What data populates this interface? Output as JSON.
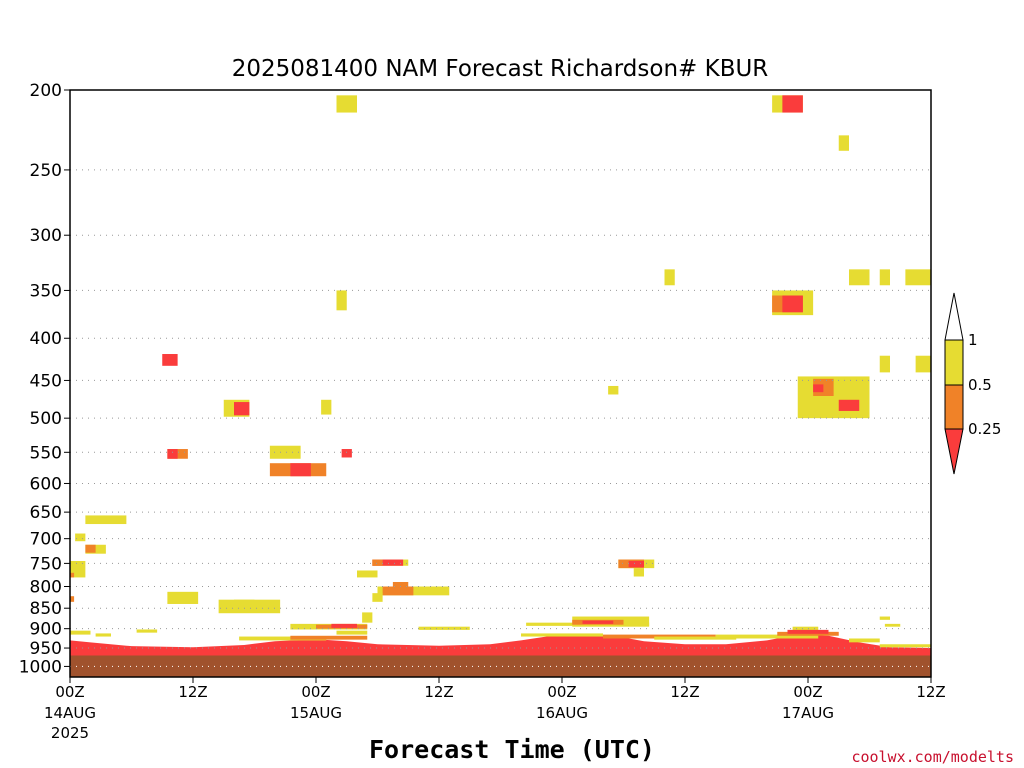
{
  "chart_data": {
    "type": "heatmap",
    "title": "2025081400 NAM Forecast Richardson# KBUR",
    "xlabel": "Forecast Time (UTC)",
    "ylabel": "",
    "y_ticks": [
      200,
      250,
      300,
      350,
      400,
      450,
      500,
      550,
      600,
      650,
      700,
      750,
      800,
      850,
      900,
      950,
      1000
    ],
    "y_scale": "log",
    "y_range_hpa": [
      200,
      1030
    ],
    "x_range_hours": [
      0,
      84
    ],
    "x_ticks": [
      {
        "hour": 0,
        "label": "00Z",
        "date": "14AUG",
        "year": "2025"
      },
      {
        "hour": 12,
        "label": "12Z",
        "date": "",
        "year": ""
      },
      {
        "hour": 24,
        "label": "00Z",
        "date": "15AUG",
        "year": ""
      },
      {
        "hour": 36,
        "label": "12Z",
        "date": "",
        "year": ""
      },
      {
        "hour": 48,
        "label": "00Z",
        "date": "16AUG",
        "year": ""
      },
      {
        "hour": 60,
        "label": "12Z",
        "date": "",
        "year": ""
      },
      {
        "hour": 72,
        "label": "00Z",
        "date": "17AUG",
        "year": ""
      },
      {
        "hour": 84,
        "label": "12Z",
        "date": "",
        "year": ""
      }
    ],
    "grid": "dotted horizontal lines at pressure ticks",
    "legend": {
      "placement": "right",
      "levels": [
        "1",
        "0.5",
        "0.25"
      ],
      "bins": [
        {
          "range": ">1",
          "color": "#ffffff"
        },
        {
          "range": "0.5-1",
          "color": "#e6dc32"
        },
        {
          "range": "0.25-0.5",
          "color": "#f08228"
        },
        {
          "range": "<0.25",
          "color": "#fa3c3c"
        }
      ]
    },
    "ground": {
      "color": "#a0522d",
      "from_hpa": 970
    },
    "patches": [
      {
        "h0": 26,
        "h1": 28,
        "p0": 203,
        "p1": 213,
        "c": "y"
      },
      {
        "h0": 68.5,
        "h1": 71.5,
        "p0": 203,
        "p1": 213,
        "c": "y"
      },
      {
        "h0": 69.5,
        "h1": 71.5,
        "p0": 203,
        "p1": 213,
        "c": "r"
      },
      {
        "h0": 75,
        "h1": 76,
        "p0": 227,
        "p1": 237,
        "c": "y"
      },
      {
        "h0": 58,
        "h1": 59,
        "p0": 330,
        "p1": 345,
        "c": "y"
      },
      {
        "h0": 76,
        "h1": 78,
        "p0": 330,
        "p1": 345,
        "c": "y"
      },
      {
        "h0": 79,
        "h1": 80,
        "p0": 330,
        "p1": 345,
        "c": "y"
      },
      {
        "h0": 81.5,
        "h1": 84,
        "p0": 330,
        "p1": 345,
        "c": "y"
      },
      {
        "h0": 26,
        "h1": 27,
        "p0": 350,
        "p1": 370,
        "c": "y"
      },
      {
        "h0": 68.5,
        "h1": 72.5,
        "p0": 350,
        "p1": 375,
        "c": "y"
      },
      {
        "h0": 68.5,
        "h1": 71.5,
        "p0": 355,
        "p1": 372,
        "c": "o"
      },
      {
        "h0": 69.5,
        "h1": 71.5,
        "p0": 355,
        "p1": 372,
        "c": "r"
      },
      {
        "h0": 9,
        "h1": 10.5,
        "p0": 418,
        "p1": 432,
        "c": "r"
      },
      {
        "h0": 79,
        "h1": 80,
        "p0": 420,
        "p1": 440,
        "c": "y"
      },
      {
        "h0": 82.5,
        "h1": 84,
        "p0": 420,
        "p1": 440,
        "c": "y"
      },
      {
        "h0": 52.5,
        "h1": 53.5,
        "p0": 457,
        "p1": 468,
        "c": "y"
      },
      {
        "h0": 71,
        "h1": 78,
        "p0": 445,
        "p1": 470,
        "c": "y"
      },
      {
        "h0": 71,
        "h1": 78,
        "p0": 470,
        "p1": 500,
        "c": "y"
      },
      {
        "h0": 72.5,
        "h1": 74.5,
        "p0": 448,
        "p1": 470,
        "c": "o"
      },
      {
        "h0": 72.5,
        "h1": 73.5,
        "p0": 455,
        "p1": 465,
        "c": "r"
      },
      {
        "h0": 75,
        "h1": 77,
        "p0": 475,
        "p1": 490,
        "c": "r"
      },
      {
        "h0": 15,
        "h1": 17.5,
        "p0": 475,
        "p1": 498,
        "c": "y"
      },
      {
        "h0": 16,
        "h1": 17.5,
        "p0": 478,
        "p1": 496,
        "c": "r"
      },
      {
        "h0": 24.5,
        "h1": 25.5,
        "p0": 475,
        "p1": 495,
        "c": "y"
      },
      {
        "h0": 9.5,
        "h1": 11.5,
        "p0": 545,
        "p1": 560,
        "c": "o"
      },
      {
        "h0": 9.5,
        "h1": 10.5,
        "p0": 545,
        "p1": 560,
        "c": "r"
      },
      {
        "h0": 26.5,
        "h1": 27.5,
        "p0": 545,
        "p1": 558,
        "c": "r"
      },
      {
        "h0": 19.5,
        "h1": 22.5,
        "p0": 540,
        "p1": 560,
        "c": "y"
      },
      {
        "h0": 19.5,
        "h1": 25,
        "p0": 567,
        "p1": 588,
        "c": "o"
      },
      {
        "h0": 21.5,
        "h1": 23.5,
        "p0": 567,
        "p1": 588,
        "c": "r"
      },
      {
        "h0": 1.5,
        "h1": 5.5,
        "p0": 656,
        "p1": 672,
        "c": "y"
      },
      {
        "h0": 0.5,
        "h1": 1.5,
        "p0": 690,
        "p1": 705,
        "c": "y"
      },
      {
        "h0": 1.5,
        "h1": 3.5,
        "p0": 712,
        "p1": 730,
        "c": "y"
      },
      {
        "h0": 1.5,
        "h1": 2.5,
        "p0": 712,
        "p1": 728,
        "c": "o"
      },
      {
        "h0": 0,
        "h1": 1.5,
        "p0": 745,
        "p1": 780,
        "c": "y"
      },
      {
        "h0": 0,
        "h1": 0.4,
        "p0": 770,
        "p1": 780,
        "c": "o"
      },
      {
        "h0": 0,
        "h1": 0.4,
        "p0": 822,
        "p1": 835,
        "c": "o"
      },
      {
        "h0": 29.5,
        "h1": 33,
        "p0": 742,
        "p1": 755,
        "c": "y"
      },
      {
        "h0": 29.5,
        "h1": 32.5,
        "p0": 742,
        "p1": 755,
        "c": "r"
      },
      {
        "h0": 29.5,
        "h1": 30.5,
        "p0": 742,
        "p1": 755,
        "c": "o"
      },
      {
        "h0": 28,
        "h1": 30,
        "p0": 765,
        "p1": 780,
        "c": "y"
      },
      {
        "h0": 53.5,
        "h1": 57,
        "p0": 742,
        "p1": 760,
        "c": "y"
      },
      {
        "h0": 53.5,
        "h1": 56,
        "p0": 742,
        "p1": 760,
        "c": "o"
      },
      {
        "h0": 54.5,
        "h1": 56,
        "p0": 745,
        "p1": 758,
        "c": "r"
      },
      {
        "h0": 55,
        "h1": 56,
        "p0": 760,
        "p1": 778,
        "c": "y"
      },
      {
        "h0": 30,
        "h1": 37,
        "p0": 800,
        "p1": 820,
        "c": "y"
      },
      {
        "h0": 30.5,
        "h1": 33.5,
        "p0": 800,
        "p1": 820,
        "c": "o"
      },
      {
        "h0": 31.5,
        "h1": 33,
        "p0": 790,
        "p1": 805,
        "c": "o"
      },
      {
        "h0": 29.5,
        "h1": 30.5,
        "p0": 815,
        "p1": 835,
        "c": "y"
      },
      {
        "h0": 9.5,
        "h1": 12.5,
        "p0": 812,
        "p1": 840,
        "c": "y"
      },
      {
        "h0": 14.5,
        "h1": 20.5,
        "p0": 830,
        "p1": 862,
        "c": "y"
      },
      {
        "h0": 16,
        "h1": 18,
        "p0": 830,
        "p1": 845,
        "c": "y"
      },
      {
        "h0": 21.5,
        "h1": 29,
        "p0": 888,
        "p1": 902,
        "c": "y"
      },
      {
        "h0": 24,
        "h1": 29,
        "p0": 890,
        "p1": 900,
        "c": "o"
      },
      {
        "h0": 25.5,
        "h1": 28,
        "p0": 888,
        "p1": 898,
        "c": "r"
      },
      {
        "h0": 28.5,
        "h1": 29.5,
        "p0": 860,
        "p1": 885,
        "c": "y"
      },
      {
        "h0": 26,
        "h1": 29,
        "p0": 905,
        "p1": 915,
        "c": "y"
      },
      {
        "h0": 6.5,
        "h1": 8.5,
        "p0": 902,
        "p1": 910,
        "c": "y"
      },
      {
        "h0": 34,
        "h1": 39,
        "p0": 895,
        "p1": 903,
        "c": "y"
      },
      {
        "h0": 44.5,
        "h1": 56.5,
        "p0": 885,
        "p1": 893,
        "c": "y"
      },
      {
        "h0": 49,
        "h1": 56.5,
        "p0": 870,
        "p1": 895,
        "c": "y"
      },
      {
        "h0": 49,
        "h1": 54,
        "p0": 878,
        "p1": 890,
        "c": "o"
      },
      {
        "h0": 50,
        "h1": 53,
        "p0": 880,
        "p1": 888,
        "c": "r"
      },
      {
        "h0": 70.5,
        "h1": 73,
        "p0": 895,
        "p1": 905,
        "c": "y"
      },
      {
        "h0": 79,
        "h1": 80,
        "p0": 870,
        "p1": 878,
        "c": "y"
      },
      {
        "h0": 79.5,
        "h1": 81,
        "p0": 888,
        "p1": 895,
        "c": "y"
      },
      {
        "h0": 0,
        "h1": 2,
        "p0": 905,
        "p1": 915,
        "c": "y"
      },
      {
        "h0": 2.5,
        "h1": 4,
        "p0": 912,
        "p1": 920,
        "c": "y"
      },
      {
        "h0": 16.5,
        "h1": 25,
        "p0": 920,
        "p1": 930,
        "c": "y"
      },
      {
        "h0": 21.5,
        "h1": 29,
        "p0": 918,
        "p1": 928,
        "c": "o"
      },
      {
        "h0": 44,
        "h1": 52,
        "p0": 912,
        "p1": 920,
        "c": "y"
      },
      {
        "h0": 52,
        "h1": 63,
        "p0": 915,
        "p1": 925,
        "c": "o"
      },
      {
        "h0": 57,
        "h1": 65,
        "p0": 920,
        "p1": 928,
        "c": "y"
      },
      {
        "h0": 63,
        "h1": 73,
        "p0": 915,
        "p1": 925,
        "c": "y"
      },
      {
        "h0": 69,
        "h1": 75,
        "p0": 908,
        "p1": 918,
        "c": "o"
      },
      {
        "h0": 70,
        "h1": 74,
        "p0": 903,
        "p1": 913,
        "c": "r"
      },
      {
        "h0": 76,
        "h1": 79,
        "p0": 925,
        "p1": 935,
        "c": "y"
      },
      {
        "h0": 79,
        "h1": 84,
        "p0": 940,
        "p1": 948,
        "c": "y"
      }
    ],
    "surface_layer": [
      {
        "h": 0,
        "top": 930
      },
      {
        "h": 2,
        "top": 935
      },
      {
        "h": 6,
        "top": 945
      },
      {
        "h": 12,
        "top": 948
      },
      {
        "h": 17,
        "top": 942
      },
      {
        "h": 20,
        "top": 932
      },
      {
        "h": 24,
        "top": 927
      },
      {
        "h": 27,
        "top": 932
      },
      {
        "h": 30,
        "top": 940
      },
      {
        "h": 36,
        "top": 944
      },
      {
        "h": 41,
        "top": 940
      },
      {
        "h": 44,
        "top": 930
      },
      {
        "h": 47,
        "top": 918
      },
      {
        "h": 50,
        "top": 914
      },
      {
        "h": 53,
        "top": 918
      },
      {
        "h": 56,
        "top": 932
      },
      {
        "h": 60,
        "top": 940
      },
      {
        "h": 64,
        "top": 940
      },
      {
        "h": 68,
        "top": 930
      },
      {
        "h": 71,
        "top": 915
      },
      {
        "h": 74,
        "top": 918
      },
      {
        "h": 77,
        "top": 935
      },
      {
        "h": 80,
        "top": 948
      },
      {
        "h": 84,
        "top": 950
      }
    ]
  },
  "credit": "coolwx.com/modelts"
}
